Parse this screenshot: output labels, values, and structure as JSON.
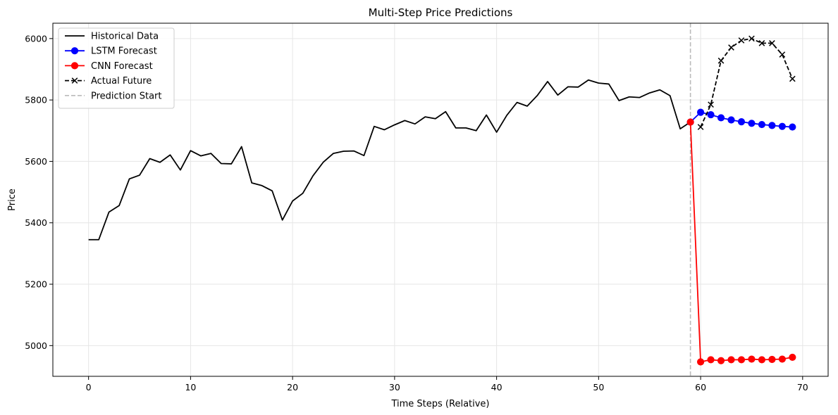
{
  "chart_data": {
    "type": "line",
    "title": "Multi-Step Price Predictions",
    "xlabel": "Time Steps (Relative)",
    "ylabel": "Price",
    "xlim": [
      -3.5,
      72.5
    ],
    "ylim": [
      4900,
      6050
    ],
    "xticks": [
      0,
      10,
      20,
      30,
      40,
      50,
      60,
      70
    ],
    "yticks": [
      5000,
      5200,
      5400,
      5600,
      5800,
      6000
    ],
    "grid": true,
    "legend_position": "upper-left",
    "vline": {
      "x": 59,
      "name": "Prediction Start",
      "color": "#bbbbbb",
      "style": "dashed"
    },
    "series": [
      {
        "name": "Historical Data",
        "color": "#000000",
        "style": "solid",
        "marker": "none",
        "x": [
          0,
          1,
          2,
          3,
          4,
          5,
          6,
          7,
          8,
          9,
          10,
          11,
          12,
          13,
          14,
          15,
          16,
          17,
          18,
          19,
          20,
          21,
          22,
          23,
          24,
          25,
          26,
          27,
          28,
          29,
          30,
          31,
          32,
          33,
          34,
          35,
          36,
          37,
          38,
          39,
          40,
          41,
          42,
          43,
          44,
          45,
          46,
          47,
          48,
          49,
          50,
          51,
          52,
          53,
          54,
          55,
          56,
          57,
          58,
          59
        ],
        "values": [
          5345,
          5345,
          5435,
          5456,
          5543,
          5555,
          5609,
          5597,
          5621,
          5572,
          5635,
          5618,
          5626,
          5593,
          5592,
          5648,
          5530,
          5521,
          5504,
          5409,
          5471,
          5496,
          5553,
          5597,
          5626,
          5633,
          5634,
          5619,
          5714,
          5703,
          5719,
          5733,
          5722,
          5745,
          5739,
          5762,
          5709,
          5709,
          5700,
          5751,
          5695,
          5750,
          5792,
          5780,
          5815,
          5860,
          5816,
          5843,
          5842,
          5865,
          5855,
          5852,
          5798,
          5810,
          5808,
          5823,
          5833,
          5814,
          5706,
          5728
        ]
      },
      {
        "name": "LSTM Forecast",
        "color": "#0000ff",
        "style": "solid",
        "marker": "circle",
        "x": [
          59,
          60,
          61,
          62,
          63,
          64,
          65,
          66,
          67,
          68,
          69
        ],
        "values": [
          5728,
          5760,
          5752,
          5742,
          5735,
          5729,
          5724,
          5720,
          5717,
          5714,
          5712
        ]
      },
      {
        "name": "CNN Forecast",
        "color": "#ff0000",
        "style": "solid",
        "marker": "circle",
        "x": [
          59,
          60,
          61,
          62,
          63,
          64,
          65,
          66,
          67,
          68,
          69
        ],
        "values": [
          5728,
          4947,
          4954,
          4951,
          4954,
          4954,
          4956,
          4954,
          4955,
          4956,
          4962
        ]
      },
      {
        "name": "Actual Future",
        "color": "#000000",
        "style": "dashed",
        "marker": "x",
        "x": [
          60,
          61,
          62,
          63,
          64,
          65,
          66,
          67,
          68,
          69
        ],
        "values": [
          5712,
          5785,
          5928,
          5971,
          5994,
          6000,
          5985,
          5985,
          5948,
          5869
        ]
      }
    ]
  }
}
